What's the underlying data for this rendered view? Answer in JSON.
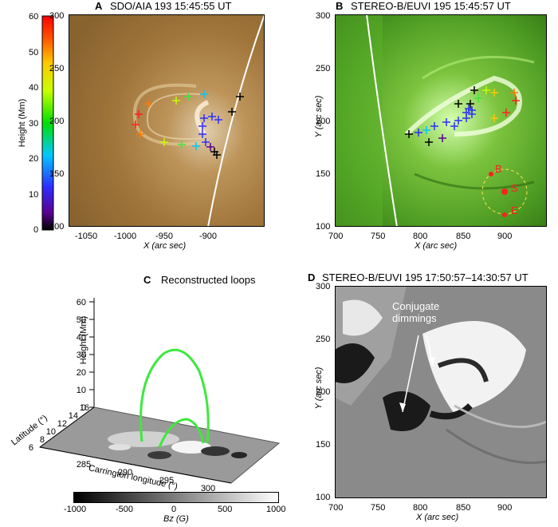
{
  "colorbar_height": {
    "label": "Height (Mm)",
    "ticks": [
      "0",
      "10",
      "20",
      "30",
      "40",
      "50",
      "60"
    ]
  },
  "panel_a": {
    "letter": "A",
    "title": "SDO/AIA 193  15:45:55 UT",
    "xlabel": "X (arc sec)",
    "xticks": [
      "-1050",
      "-1000",
      "-950",
      "-900"
    ],
    "yticks": [
      "100",
      "150",
      "200",
      "250",
      "300"
    ]
  },
  "panel_b": {
    "letter": "B",
    "title": "STEREO-B/EUVI 195  15:45:57 UT",
    "xlabel": "X (arc sec)",
    "ylabel": "Y (arc sec)",
    "xticks": [
      "700",
      "750",
      "800",
      "850",
      "900"
    ],
    "yticks": [
      "100",
      "150",
      "200",
      "250",
      "300"
    ],
    "markers": [
      "B",
      "S",
      "E"
    ]
  },
  "panel_c": {
    "letter": "C",
    "title": "Reconstructed loops",
    "zlabel": "Height (Mm)",
    "zticks": [
      "0",
      "10",
      "20",
      "30",
      "40",
      "50",
      "60"
    ],
    "latitude_label": "Latitude (°)",
    "latitude_ticks": [
      "6",
      "8",
      "10",
      "12",
      "14",
      "16"
    ],
    "longitude_label": "Carrington longitude (°)",
    "longitude_ticks": [
      "285",
      "290",
      "295",
      "300"
    ],
    "bz_label": "Bz (G)",
    "bz_ticks": [
      "-1000",
      "-500",
      "0",
      "500",
      "1000"
    ]
  },
  "panel_d": {
    "letter": "D",
    "title": "STEREO-B/EUVI 195  17:50:57–14:30:57 UT",
    "xlabel": "X (arc sec)",
    "ylabel": "Y (arc sec)",
    "xticks": [
      "700",
      "750",
      "800",
      "850",
      "900"
    ],
    "yticks": [
      "100",
      "150",
      "200",
      "250",
      "300"
    ],
    "annotation": [
      "Conjugate",
      "dimmings"
    ]
  },
  "colors": {
    "loop_green": "#3ee83e",
    "limb_white": "#ffffff",
    "panel_a_bg": "#a97b3e",
    "panel_b_bg": "#4f9e22"
  }
}
